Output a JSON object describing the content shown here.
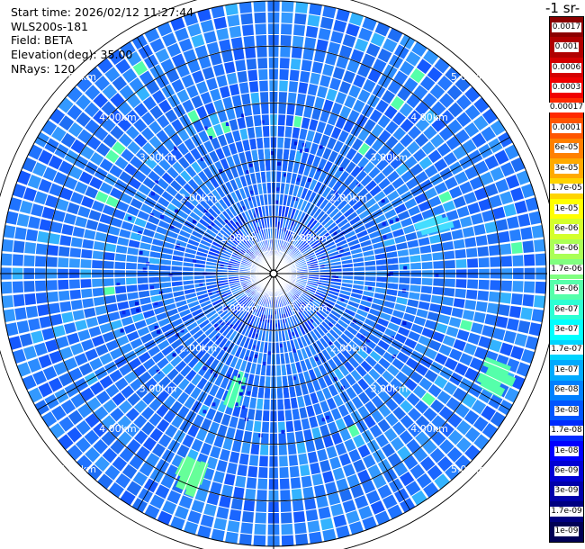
{
  "info": {
    "start_time": "Start time: 2026/02/12 11:27:44",
    "instrument": "WLS200s-181",
    "field": "Field: BETA",
    "elevation": "Elevation(deg): 35.00",
    "nrays": "NRays: 120"
  },
  "colorbar": {
    "title": "-1 sr-",
    "labels": [
      "0.0017",
      "0.001",
      "0.0006",
      "0.0003",
      "0.00017",
      "0.0001",
      "6e-05",
      "3e-05",
      "1.7e-05",
      "1e-05",
      "6e-06",
      "3e-06",
      "1.7e-06",
      "1e-06",
      "6e-07",
      "3e-07",
      "1.7e-07",
      "1e-07",
      "6e-08",
      "3e-08",
      "1.7e-08",
      "1e-08",
      "6e-09",
      "3e-09",
      "1.7e-09",
      "1e-09"
    ],
    "colors": [
      "#8b0000",
      "#b00000",
      "#d40000",
      "#f00000",
      "#ff2a00",
      "#ff5500",
      "#ff8000",
      "#ffaa00",
      "#ffd400",
      "#ffff00",
      "#d4ff2b",
      "#aaff55",
      "#80ff80",
      "#55ffaa",
      "#2bffd4",
      "#00ffff",
      "#00d4ff",
      "#00aaff",
      "#0080ff",
      "#0055ff",
      "#002bff",
      "#0000ff",
      "#0000d4",
      "#0000aa",
      "#000080",
      "#000055"
    ]
  },
  "range_labels": [
    "1.00km",
    "2.00km",
    "3.00km",
    "4.00km",
    "5.00km"
  ],
  "radar": {
    "nrays": 120,
    "max_range_km": 5.3
  }
}
